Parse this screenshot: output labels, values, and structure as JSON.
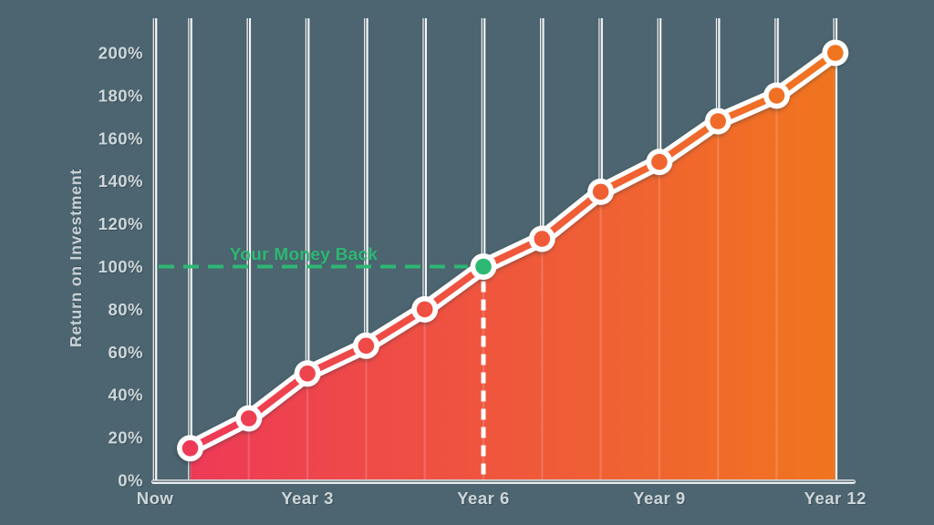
{
  "chart_data": {
    "type": "area",
    "title": "",
    "ylabel": "Return on Investment",
    "y_tick_labels": [
      "0%",
      "20%",
      "40%",
      "60%",
      "80%",
      "100%",
      "120%",
      "140%",
      "160%",
      "180%",
      "200%"
    ],
    "y_tick_values": [
      0,
      20,
      40,
      60,
      80,
      100,
      120,
      140,
      160,
      180,
      200
    ],
    "ylim": [
      0,
      216
    ],
    "x_tick_labels": [
      {
        "label": "Now",
        "year": 0
      },
      {
        "label": "Year 3",
        "year": 3
      },
      {
        "label": "Year 6",
        "year": 6
      },
      {
        "label": "Year 9",
        "year": 9
      },
      {
        "label": "Year 12",
        "year": 12
      }
    ],
    "grid": "vertical-only",
    "legend_position": "none",
    "series": [
      {
        "name": "Return on Investment",
        "x": [
          1,
          2,
          3,
          4,
          5,
          6,
          7,
          8,
          9,
          10,
          11,
          12
        ],
        "values": [
          15,
          29,
          50,
          63,
          80,
          100,
          113,
          135,
          149,
          168,
          180,
          200
        ]
      }
    ],
    "annotation": {
      "label": "Your Money Back",
      "value": 100,
      "year": 6
    },
    "colors": {
      "background": "#4C6570",
      "gradient_start": "#EE3A57",
      "gradient_end": "#F0751F",
      "annotation_green": "#2DB873",
      "grid_white": "#F3F5F6",
      "grid_inner_dark": "#43565F",
      "tick_text": "#CED7DA",
      "point_ring": "#FFFFFF"
    }
  }
}
